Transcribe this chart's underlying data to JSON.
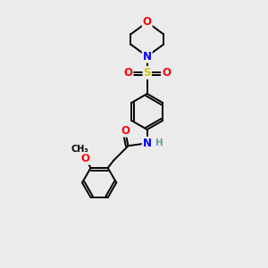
{
  "bg_color": "#ebebeb",
  "atom_colors": {
    "C": "#000000",
    "H": "#5f9ea0",
    "N": "#0000ff",
    "O": "#ff0000",
    "S": "#cccc00"
  },
  "lw": 1.4,
  "fs": 8.5
}
